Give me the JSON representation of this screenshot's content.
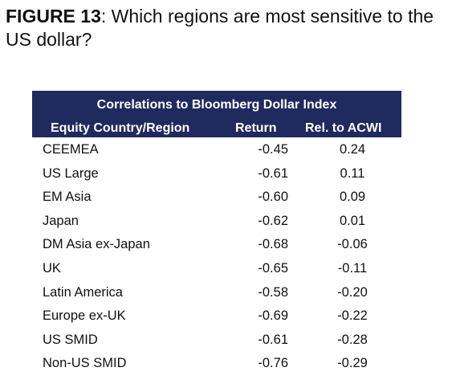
{
  "figure": {
    "label": "FIGURE 13",
    "title": ": Which regions are most sensitive to the US dollar?"
  },
  "table": {
    "caption": "Correlations to Bloomberg Dollar Index",
    "columns": [
      "Equity Country/Region",
      "Return",
      "Rel. to ACWI"
    ],
    "header_bg": "#1f2a5e",
    "rows": [
      {
        "region": "CEEMEA",
        "return": "-0.45",
        "rel": "0.24"
      },
      {
        "region": "US Large",
        "return": "-0.61",
        "rel": "0.11"
      },
      {
        "region": "EM Asia",
        "return": "-0.60",
        "rel": "0.09"
      },
      {
        "region": "Japan",
        "return": "-0.62",
        "rel": "0.01"
      },
      {
        "region": "DM Asia ex-Japan",
        "return": "-0.68",
        "rel": "-0.06"
      },
      {
        "region": "UK",
        "return": "-0.65",
        "rel": "-0.11"
      },
      {
        "region": "Latin America",
        "return": "-0.58",
        "rel": "-0.20"
      },
      {
        "region": "Europe ex-UK",
        "return": "-0.69",
        "rel": "-0.22"
      },
      {
        "region": "US SMID",
        "return": "-0.61",
        "rel": "-0.28"
      },
      {
        "region": "Non-US SMID",
        "return": "-0.76",
        "rel": "-0.29"
      }
    ]
  }
}
